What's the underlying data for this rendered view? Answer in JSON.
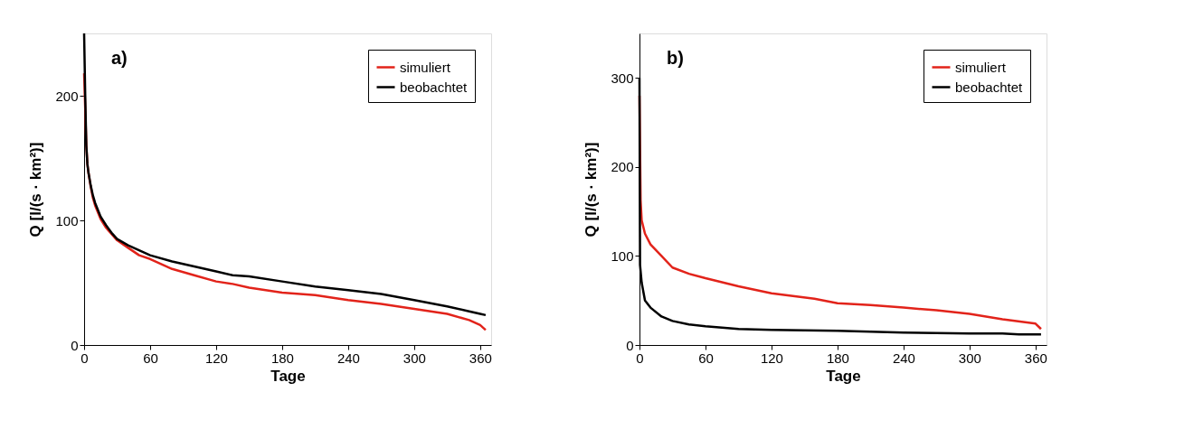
{
  "chart_data": [
    {
      "type": "line",
      "xlabel": "Tage",
      "ylabel": "Q [l/(s · km²)]",
      "annotations": [
        "a)"
      ],
      "xlim": [
        0,
        370
      ],
      "ylim": [
        0,
        250
      ],
      "xticks": [
        0,
        60,
        120,
        180,
        240,
        300,
        360
      ],
      "yticks": [
        0,
        100,
        200
      ],
      "grid": false,
      "legend": "top right",
      "line_style": "solid",
      "series": [
        {
          "name": "simuliert",
          "color": "#e2231a",
          "x": [
            0,
            1,
            2,
            3,
            4,
            6,
            8,
            10,
            15,
            20,
            25,
            30,
            40,
            50,
            60,
            80,
            100,
            120,
            135,
            150,
            180,
            210,
            240,
            270,
            300,
            330,
            350,
            360,
            365
          ],
          "values": [
            218,
            190,
            160,
            145,
            138,
            127,
            118,
            112,
            101,
            94,
            89,
            84,
            78,
            72,
            69,
            61,
            56,
            51,
            49,
            46,
            42,
            40,
            36,
            33,
            29,
            25,
            20,
            16,
            12
          ]
        },
        {
          "name": "beobachtet",
          "color": "#000000",
          "x": [
            0,
            1,
            2,
            3,
            4,
            6,
            8,
            10,
            15,
            20,
            25,
            30,
            40,
            50,
            60,
            80,
            100,
            120,
            135,
            150,
            180,
            210,
            240,
            270,
            300,
            330,
            350,
            360,
            365
          ],
          "values": [
            250,
            200,
            160,
            145,
            138,
            128,
            120,
            114,
            103,
            96,
            90,
            85,
            80,
            76,
            72,
            67,
            63,
            59,
            56,
            55,
            51,
            47,
            44,
            41,
            36,
            31,
            27,
            25,
            24
          ]
        }
      ]
    },
    {
      "type": "line",
      "xlabel": "Tage",
      "ylabel": "Q [l/(s · km²)]",
      "annotations": [
        "b)"
      ],
      "xlim": [
        0,
        370
      ],
      "ylim": [
        0,
        350
      ],
      "xticks": [
        0,
        60,
        120,
        180,
        240,
        300,
        360
      ],
      "yticks": [
        0,
        100,
        200,
        300
      ],
      "grid": false,
      "legend": "top right",
      "line_style": "solid",
      "series": [
        {
          "name": "simuliert",
          "color": "#e2231a",
          "x": [
            0,
            1,
            2,
            5,
            10,
            20,
            30,
            45,
            60,
            90,
            120,
            159,
            180,
            210,
            240,
            270,
            300,
            330,
            360,
            365
          ],
          "values": [
            280,
            163,
            140,
            125,
            113,
            100,
            87,
            80,
            75,
            66,
            58,
            52,
            47,
            45,
            42,
            39,
            35,
            29,
            24,
            18
          ]
        },
        {
          "name": "beobachtet",
          "color": "#000000",
          "x": [
            0,
            0.5,
            2,
            5,
            10,
            20,
            30,
            45,
            60,
            90,
            120,
            180,
            240,
            300,
            330,
            345,
            365
          ],
          "values": [
            300,
            90,
            70,
            50,
            42,
            32,
            27,
            23,
            21,
            18,
            17,
            16,
            14,
            13,
            13,
            12,
            12
          ]
        }
      ]
    }
  ]
}
